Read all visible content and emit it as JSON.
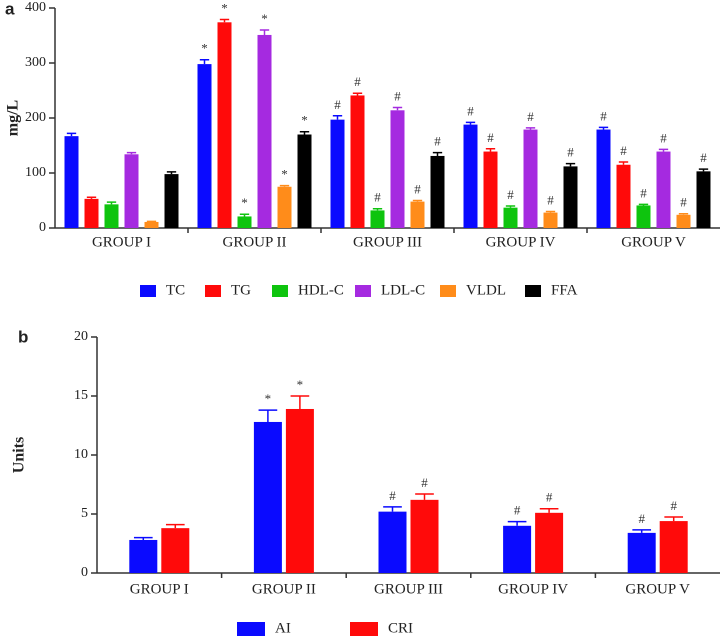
{
  "chart_data": [
    {
      "type": "bar",
      "panel_label": "a",
      "ylabel": "mg/L",
      "categories": [
        "GROUP I",
        "GROUP II",
        "GROUP III",
        "GROUP IV",
        "GROUP V"
      ],
      "ylim": [
        0,
        400
      ],
      "yticks": [
        0,
        100,
        200,
        300,
        400
      ],
      "legend": "bottom",
      "series": [
        {
          "name": "TC",
          "color": "#0a0aff",
          "values": [
            167,
            298,
            197,
            188,
            179
          ],
          "errors": [
            5,
            8,
            7,
            4,
            4
          ],
          "annotations": [
            null,
            "*",
            "#",
            "#",
            "#"
          ]
        },
        {
          "name": "TG",
          "color": "#ff0a0a",
          "values": [
            53,
            374,
            241,
            139,
            115
          ],
          "errors": [
            3,
            5,
            4,
            5,
            5
          ],
          "annotations": [
            null,
            "*",
            "#",
            "#",
            "#"
          ]
        },
        {
          "name": "HDL-C",
          "color": "#0ec40e",
          "values": [
            43,
            21,
            32,
            37,
            41
          ],
          "errors": [
            4,
            4,
            3,
            3,
            2
          ],
          "annotations": [
            null,
            "*",
            "#",
            "#",
            "#"
          ]
        },
        {
          "name": "LDL-C",
          "color": "#a52ae0",
          "values": [
            134,
            351,
            214,
            179,
            139
          ],
          "errors": [
            3,
            9,
            5,
            3,
            4
          ],
          "annotations": [
            null,
            "*",
            "#",
            "#",
            "#"
          ]
        },
        {
          "name": "VLDL",
          "color": "#ff8c1a",
          "values": [
            11,
            75,
            48,
            28,
            24
          ],
          "errors": [
            1,
            2,
            2,
            2,
            2
          ],
          "annotations": [
            null,
            "*",
            "#",
            "#",
            "#"
          ]
        },
        {
          "name": "FFA",
          "color": "#000000",
          "values": [
            98,
            170,
            131,
            112,
            103
          ],
          "errors": [
            4,
            5,
            6,
            5,
            4
          ],
          "annotations": [
            null,
            "*",
            "#",
            "#",
            "#"
          ]
        }
      ]
    },
    {
      "type": "bar",
      "panel_label": "b",
      "ylabel": "Units",
      "categories": [
        "GROUP I",
        "GROUP II",
        "GROUP III",
        "GROUP IV",
        "GROUP V"
      ],
      "ylim": [
        0,
        20
      ],
      "yticks": [
        0,
        5,
        10,
        15,
        20
      ],
      "legend": "bottom",
      "series": [
        {
          "name": "AI",
          "color": "#0a0aff",
          "values": [
            2.8,
            12.8,
            5.2,
            4.0,
            3.4
          ],
          "errors": [
            0.2,
            1.0,
            0.4,
            0.35,
            0.25
          ],
          "annotations": [
            null,
            "*",
            "#",
            "#",
            "#"
          ]
        },
        {
          "name": "CRI",
          "color": "#ff0a0a",
          "values": [
            3.8,
            13.9,
            6.2,
            5.1,
            4.4
          ],
          "errors": [
            0.3,
            1.1,
            0.5,
            0.35,
            0.35
          ],
          "annotations": [
            null,
            "*",
            "#",
            "#",
            "#"
          ]
        }
      ]
    }
  ]
}
